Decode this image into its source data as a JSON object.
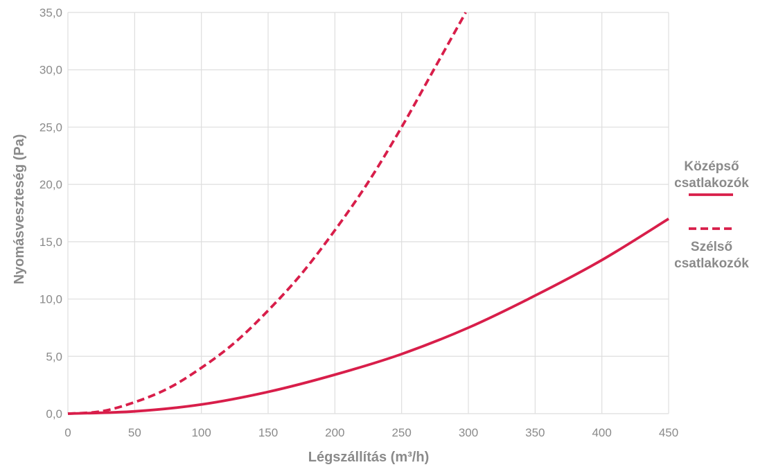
{
  "chart_data": {
    "type": "line",
    "xlabel": "Légszállítás (m³/h)",
    "ylabel": "Nyomásveszteség (Pa)",
    "xlim": [
      0,
      450
    ],
    "ylim": [
      0,
      35
    ],
    "x_ticks": [
      "0",
      "50",
      "100",
      "150",
      "200",
      "250",
      "300",
      "350",
      "400",
      "450"
    ],
    "y_ticks": [
      "0,0",
      "5,0",
      "10,0",
      "15,0",
      "20,0",
      "25,0",
      "30,0",
      "35,0"
    ],
    "grid": true,
    "legend_position": "right",
    "series": [
      {
        "name_lines": [
          "Középső",
          "csatlakozók"
        ],
        "style": "solid",
        "color": "#d81e4a",
        "x": [
          0,
          50,
          100,
          150,
          200,
          250,
          300,
          350,
          400,
          450
        ],
        "y": [
          0.0,
          0.2,
          0.8,
          1.9,
          3.4,
          5.2,
          7.5,
          10.3,
          13.4,
          17.0
        ]
      },
      {
        "name_lines": [
          "Szélső",
          "csatlakozók"
        ],
        "style": "dashed",
        "color": "#d81e4a",
        "x": [
          0,
          25,
          50,
          75,
          100,
          125,
          150,
          175,
          200,
          225,
          250,
          275,
          298
        ],
        "y": [
          0.0,
          0.2,
          1.0,
          2.2,
          4.0,
          6.2,
          9.0,
          12.2,
          16.0,
          20.2,
          25.0,
          30.2,
          35.0
        ]
      }
    ]
  }
}
